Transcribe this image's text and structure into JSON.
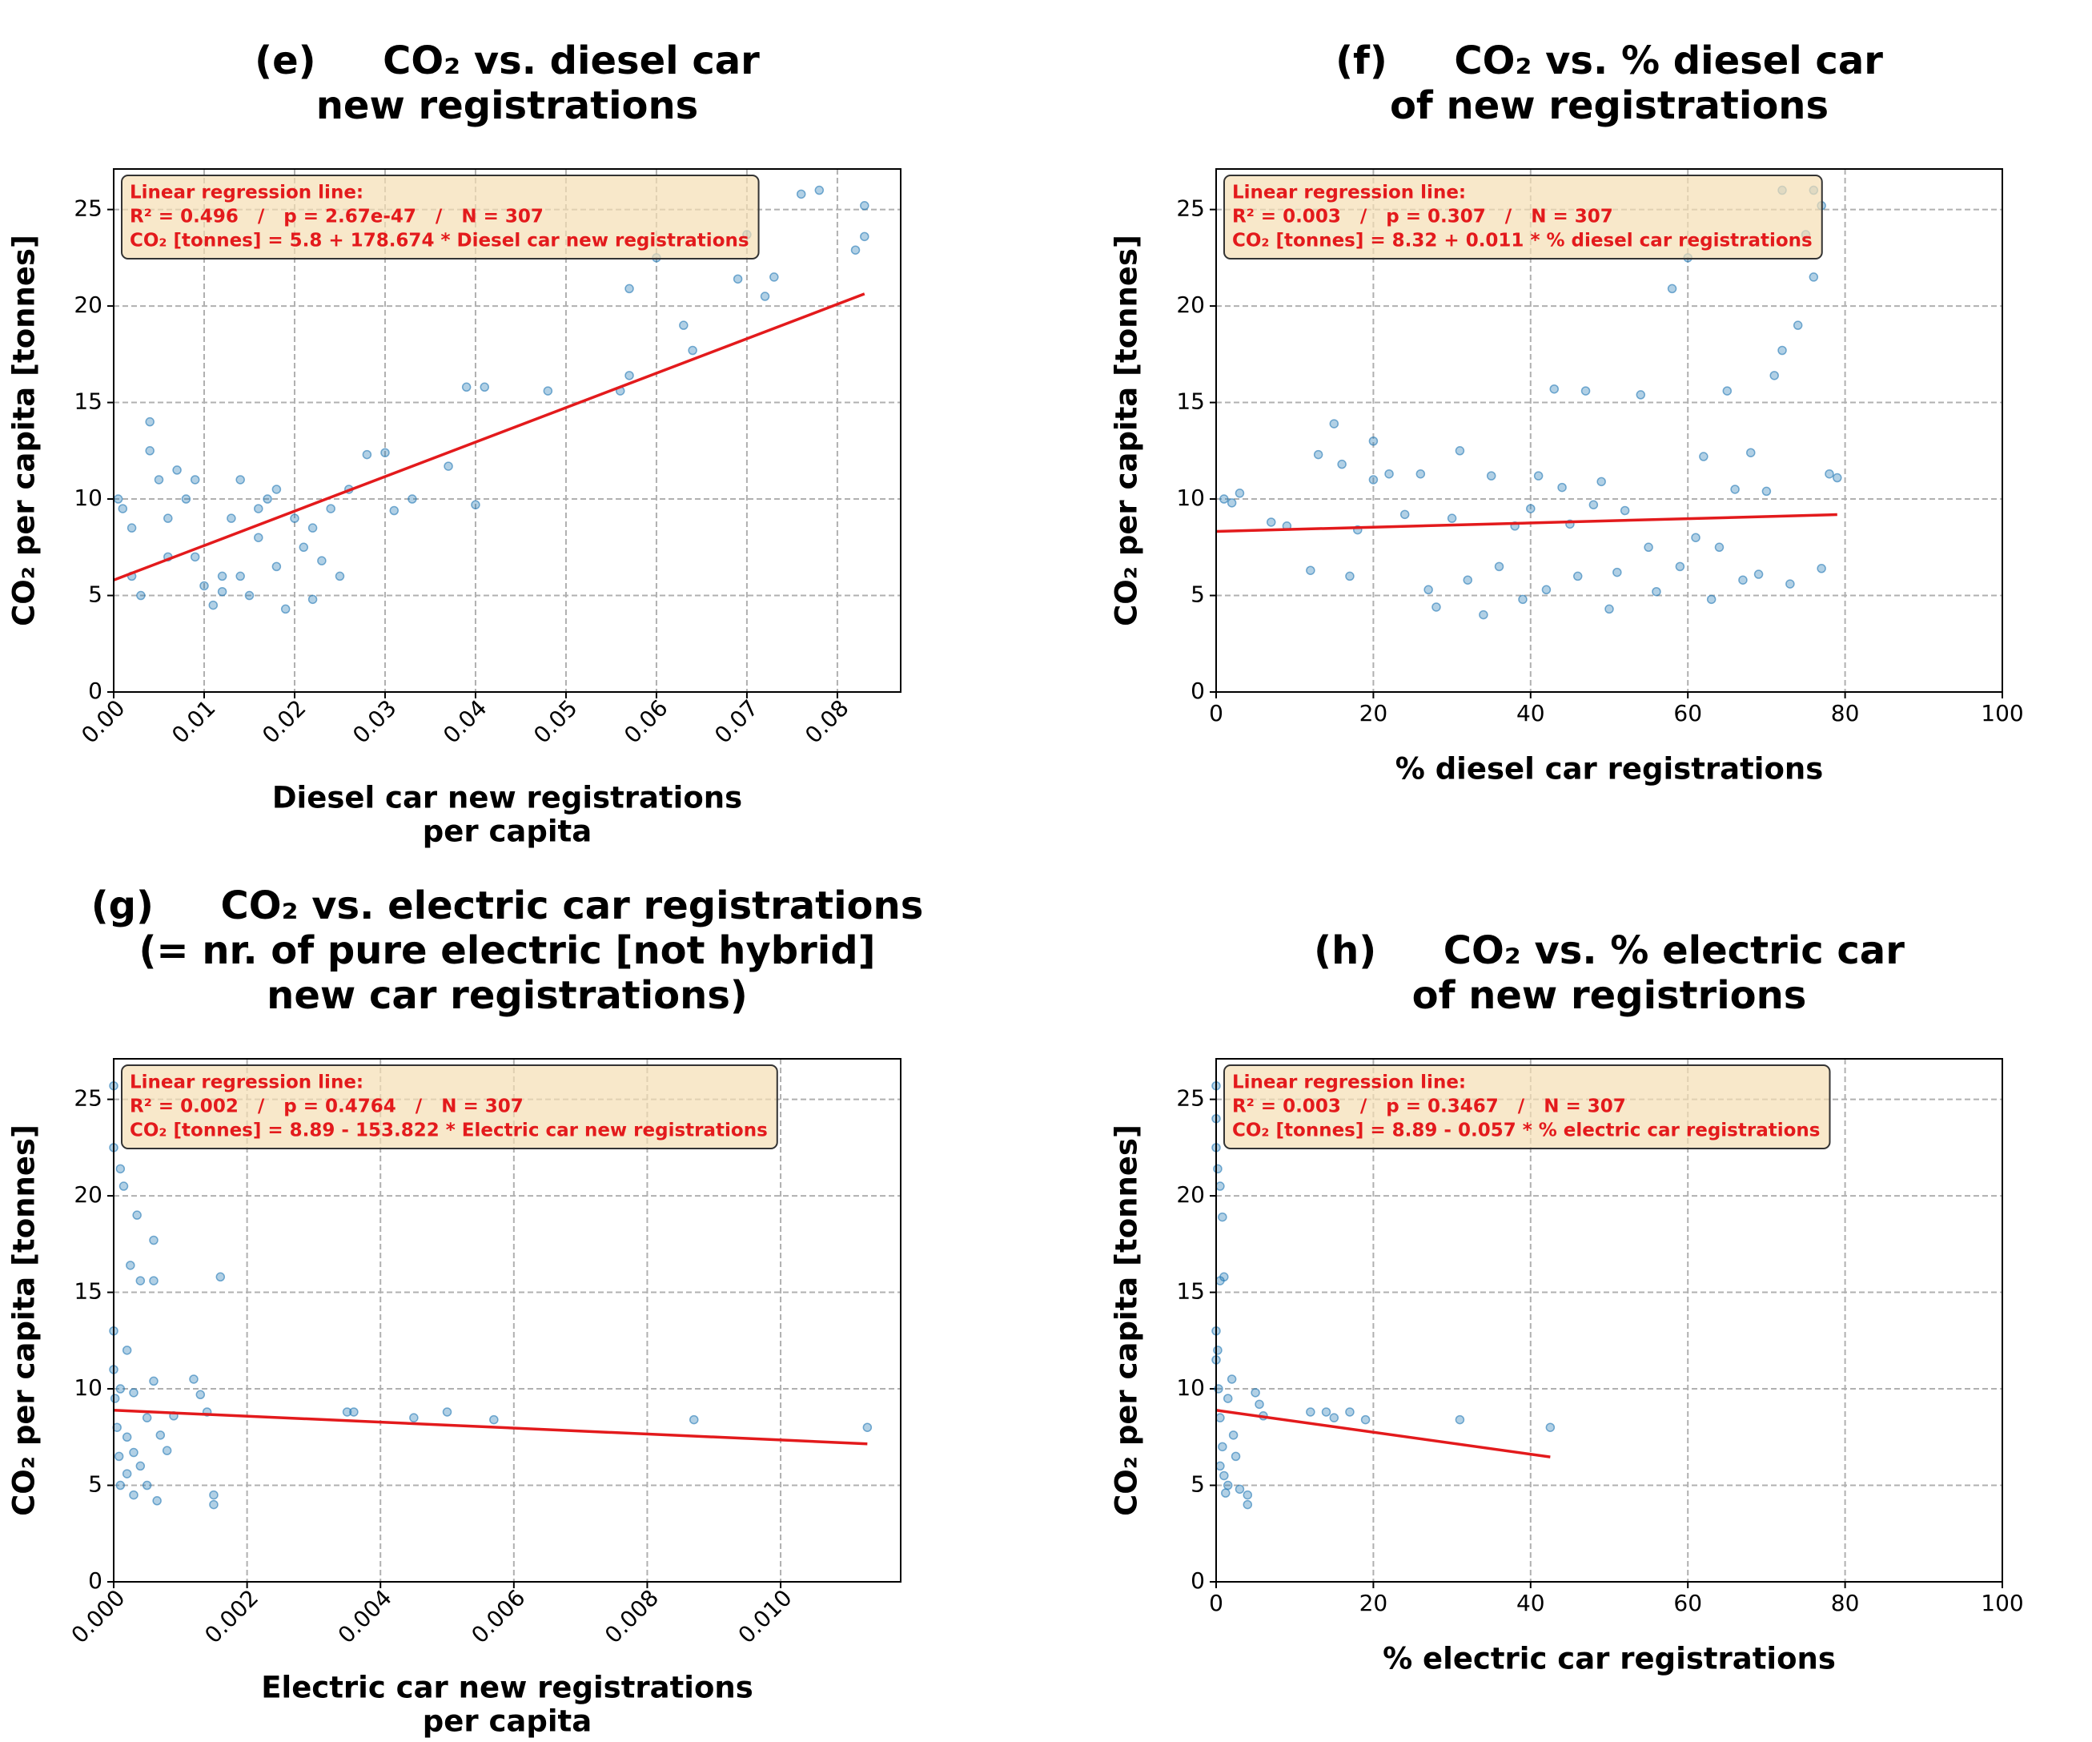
{
  "chart_data": [
    {
      "type": "scatter",
      "title": [
        "(e)     CO₂ vs. diesel car",
        "new registrations"
      ],
      "xlabel": [
        "Diesel car new registrations",
        "per capita"
      ],
      "ylabel": "CO₂ per capita [tonnes]",
      "annotation": [
        "Linear regression line:",
        "R² = 0.496   /   p = 2.67e-47   /   N = 307",
        "CO₂ [tonnes] = 5.8 + 178.674 * Diesel car new registrations"
      ],
      "x": [
        0.0005,
        0.001,
        0.002,
        0.003,
        0.004,
        0.004,
        0.005,
        0.006,
        0.007,
        0.008,
        0.009,
        0.01,
        0.011,
        0.012,
        0.013,
        0.014,
        0.015,
        0.016,
        0.017,
        0.018,
        0.019,
        0.02,
        0.021,
        0.022,
        0.023,
        0.024,
        0.025,
        0.026,
        0.028,
        0.03,
        0.031,
        0.033,
        0.037,
        0.039,
        0.04,
        0.041,
        0.048,
        0.056,
        0.057,
        0.057,
        0.06,
        0.063,
        0.064,
        0.069,
        0.07,
        0.072,
        0.073,
        0.076,
        0.078,
        0.082,
        0.083,
        0.083,
        0.002,
        0.006,
        0.009,
        0.012,
        0.014,
        0.016,
        0.018,
        0.022
      ],
      "values": [
        10,
        9.5,
        6,
        5,
        14,
        12.5,
        11,
        9,
        11.5,
        10,
        7,
        5.5,
        4.5,
        6,
        9,
        11,
        5,
        8,
        10,
        6.5,
        4.3,
        9,
        7.5,
        8.5,
        6.8,
        9.5,
        6,
        10.5,
        12.3,
        12.4,
        9.4,
        10,
        11.7,
        15.8,
        9.7,
        15.8,
        15.6,
        15.6,
        16.4,
        20.9,
        22.5,
        19,
        17.7,
        21.4,
        23.7,
        20.5,
        21.5,
        25.8,
        26,
        22.9,
        25.2,
        23.6,
        8.5,
        7,
        11,
        5.2,
        6,
        9.5,
        10.5,
        4.8
      ],
      "color": "#1f77b4",
      "trend": {
        "x": [
          0,
          0.083
        ],
        "values": [
          5.8,
          20.63
        ],
        "color": "#e31a1c"
      },
      "xlim": [
        0,
        0.087
      ],
      "ylim": [
        0,
        27.1
      ],
      "xticks": [
        {
          "value": 0,
          "label": "0.00"
        },
        {
          "value": 0.01,
          "label": "0.01"
        },
        {
          "value": 0.02,
          "label": "0.02"
        },
        {
          "value": 0.03,
          "label": "0.03"
        },
        {
          "value": 0.04,
          "label": "0.04"
        },
        {
          "value": 0.05,
          "label": "0.05"
        },
        {
          "value": 0.06,
          "label": "0.06"
        },
        {
          "value": 0.07,
          "label": "0.07"
        },
        {
          "value": 0.08,
          "label": "0.08"
        }
      ],
      "yticks": [
        0,
        5,
        10,
        15,
        20,
        25
      ],
      "xtick_rotation": 45,
      "grid": true
    },
    {
      "type": "scatter",
      "title": [
        "(f)     CO₂ vs. % diesel car",
        "of new registrations"
      ],
      "xlabel": [
        "% diesel car registrations"
      ],
      "ylabel": "CO₂ per capita [tonnes]",
      "annotation": [
        "Linear regression line:",
        "R² = 0.003   /   p = 0.307   /   N = 307",
        "CO₂ [tonnes] = 8.32 + 0.011 * % diesel car registrations"
      ],
      "x": [
        1,
        2,
        3,
        7,
        9,
        12,
        13,
        15,
        16,
        17,
        18,
        20,
        20,
        22,
        24,
        26,
        27,
        28,
        30,
        31,
        32,
        34,
        35,
        36,
        38,
        39,
        40,
        41,
        42,
        43,
        44,
        45,
        46,
        47,
        48,
        49,
        50,
        51,
        52,
        54,
        55,
        56,
        58,
        59,
        60,
        61,
        62,
        63,
        64,
        65,
        66,
        67,
        68,
        69,
        70,
        71,
        72,
        72,
        73,
        74,
        75,
        76,
        76,
        77,
        77,
        78,
        79
      ],
      "values": [
        10,
        9.8,
        10.3,
        8.8,
        8.6,
        6.3,
        12.3,
        13.9,
        11.8,
        6,
        8.4,
        11,
        13,
        11.3,
        9.2,
        11.3,
        5.3,
        4.4,
        9,
        12.5,
        5.8,
        4,
        11.2,
        6.5,
        8.6,
        4.8,
        9.5,
        11.2,
        5.3,
        15.7,
        10.6,
        8.7,
        6,
        15.6,
        9.7,
        10.9,
        4.3,
        6.2,
        9.4,
        15.4,
        7.5,
        5.2,
        20.9,
        6.5,
        22.5,
        8,
        12.2,
        4.8,
        7.5,
        15.6,
        10.5,
        5.8,
        12.4,
        6.1,
        10.4,
        16.4,
        17.7,
        26,
        5.6,
        19,
        23.7,
        21.5,
        26,
        25.2,
        6.4,
        11.3,
        11.1
      ],
      "color": "#1f77b4",
      "trend": {
        "x": [
          0,
          79
        ],
        "values": [
          8.32,
          9.19
        ],
        "color": "#e31a1c"
      },
      "xlim": [
        0,
        100
      ],
      "ylim": [
        0,
        27.1
      ],
      "xticks": [
        0,
        20,
        40,
        60,
        80,
        100
      ],
      "yticks": [
        0,
        5,
        10,
        15,
        20,
        25
      ],
      "xtick_rotation": 0,
      "grid": true
    },
    {
      "type": "scatter",
      "title": [
        "(g)     CO₂ vs. electric car registrations",
        "(= nr. of pure electric [not hybrid]",
        "new car registrations)"
      ],
      "xlabel": [
        "Electric car new registrations",
        "per capita"
      ],
      "ylabel": "CO₂ per capita [tonnes]",
      "annotation": [
        "Linear regression line:",
        "R² = 0.002   /   p = 0.4764   /   N = 307",
        "CO₂ [tonnes] = 8.89 - 153.822 * Electric car new registrations"
      ],
      "x": [
        0,
        0,
        0,
        0,
        2e-05,
        5e-05,
        8e-05,
        0.0001,
        0.0001,
        0.00015,
        0.0002,
        0.0002,
        0.00025,
        0.0003,
        0.0003,
        0.00035,
        0.0004,
        0.0004,
        0.0005,
        0.0005,
        0.0006,
        0.0006,
        0.0006,
        0.00065,
        0.0007,
        0.0008,
        0.0009,
        0.0012,
        0.0013,
        0.0014,
        0.0015,
        0.0015,
        0.0016,
        0.0035,
        0.0036,
        0.0045,
        0.005,
        0.0057,
        0.0087,
        0.0113,
        0.0001,
        0.0002,
        0.0003
      ],
      "values": [
        25.7,
        22.5,
        13,
        11,
        9.5,
        8,
        6.5,
        5,
        21.4,
        20.5,
        12,
        7.5,
        16.4,
        4.5,
        9.8,
        19,
        15.6,
        6,
        5,
        8.5,
        17.7,
        15.6,
        10.4,
        4.2,
        7.6,
        6.8,
        8.6,
        10.5,
        9.7,
        8.8,
        4,
        4.5,
        15.8,
        8.8,
        8.8,
        8.5,
        8.8,
        8.4,
        8.4,
        8,
        10,
        5.6,
        6.7
      ],
      "color": "#1f77b4",
      "trend": {
        "x": [
          0,
          0.0113
        ],
        "values": [
          8.89,
          7.15
        ],
        "color": "#e31a1c"
      },
      "xlim": [
        0,
        0.0118
      ],
      "ylim": [
        0,
        27.1
      ],
      "xticks": [
        {
          "value": 0,
          "label": "0.000"
        },
        {
          "value": 0.002,
          "label": "0.002"
        },
        {
          "value": 0.004,
          "label": "0.004"
        },
        {
          "value": 0.006,
          "label": "0.006"
        },
        {
          "value": 0.008,
          "label": "0.008"
        },
        {
          "value": 0.01,
          "label": "0.010"
        }
      ],
      "yticks": [
        0,
        5,
        10,
        15,
        20,
        25
      ],
      "xtick_rotation": 45,
      "grid": true
    },
    {
      "type": "scatter",
      "title": [
        "(h)     CO₂ vs. % electric car",
        "of new registrions"
      ],
      "xlabel": [
        "% electric car registrations"
      ],
      "ylabel": "CO₂ per capita [tonnes]",
      "annotation": [
        "Linear regression line:",
        "R² = 0.003   /   p = 0.3467   /   N = 307",
        "CO₂ [tonnes] = 8.89 - 0.057 * % electric car registrations"
      ],
      "x": [
        0,
        0,
        0,
        0.2,
        0.5,
        0.8,
        0.5,
        1,
        0,
        0,
        0.3,
        0.5,
        0.8,
        1,
        1.2,
        1.5,
        2,
        2.2,
        2.5,
        3,
        4,
        4,
        5,
        5.5,
        6,
        12,
        14,
        15,
        17,
        19,
        31,
        42.5,
        0.5,
        1.5,
        0.2
      ],
      "values": [
        25.7,
        24,
        22.5,
        21.4,
        20.5,
        18.9,
        15.6,
        15.8,
        13,
        11.5,
        10,
        8.5,
        7,
        5.5,
        4.6,
        9.5,
        10.5,
        7.6,
        6.5,
        4.8,
        4,
        4.5,
        9.8,
        9.2,
        8.6,
        8.8,
        8.8,
        8.5,
        8.8,
        8.4,
        8.4,
        8,
        6,
        5,
        12
      ],
      "color": "#1f77b4",
      "trend": {
        "x": [
          0,
          42.5
        ],
        "values": [
          8.89,
          6.47
        ],
        "color": "#e31a1c"
      },
      "xlim": [
        0,
        100
      ],
      "ylim": [
        0,
        27.1
      ],
      "xticks": [
        0,
        20,
        40,
        60,
        80,
        100
      ],
      "yticks": [
        0,
        5,
        10,
        15,
        20,
        25
      ],
      "xtick_rotation": 0,
      "grid": true
    }
  ]
}
